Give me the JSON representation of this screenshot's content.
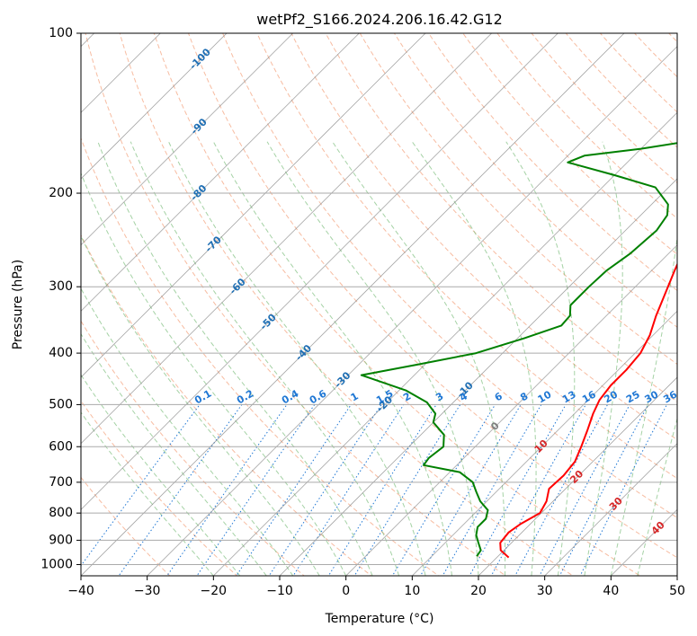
{
  "chart_data": {
    "type": "line",
    "title": "wetPf2_S166.2024.206.16.42.G12",
    "xlabel": "Temperature (°C)",
    "ylabel": "Pressure (hPa)",
    "xlim": [
      -40,
      50
    ],
    "ylim": [
      1050,
      100
    ],
    "y_scale": "log",
    "grid": true,
    "x_ticks": [
      "-40",
      "-30",
      "-20",
      "-10",
      "0",
      "10",
      "20",
      "30",
      "40",
      "50"
    ],
    "y_ticks": [
      "100",
      "200",
      "300",
      "400",
      "500",
      "600",
      "700",
      "800",
      "900",
      "1000"
    ],
    "series": [
      {
        "color": "#ff0000",
        "points": [
          [
            21.8,
            970
          ],
          [
            19.5,
            940
          ],
          [
            18.3,
            910
          ],
          [
            18.0,
            870
          ],
          [
            18.5,
            840
          ],
          [
            19.8,
            800
          ],
          [
            19.0,
            760
          ],
          [
            17.5,
            720
          ],
          [
            17.7,
            680
          ],
          [
            17.3,
            640
          ],
          [
            16.0,
            600
          ],
          [
            14.5,
            560
          ],
          [
            12.8,
            520
          ],
          [
            11.7,
            490
          ],
          [
            11.2,
            460
          ],
          [
            11.2,
            430
          ],
          [
            10.8,
            400
          ],
          [
            9.5,
            370
          ],
          [
            7.5,
            340
          ],
          [
            5.6,
            310
          ],
          [
            3.5,
            280
          ],
          [
            1.3,
            250
          ],
          [
            0.5,
            230
          ],
          [
            1.0,
            215
          ],
          [
            3.5,
            205
          ],
          [
            8.0,
            195
          ],
          [
            10.8,
            185
          ],
          [
            12.8,
            175
          ],
          [
            13.8,
            160
          ],
          [
            15.0,
            145
          ],
          [
            17.0,
            130
          ],
          [
            19.5,
            118
          ],
          [
            21.0,
            110
          ],
          [
            23.0,
            104
          ],
          [
            25.0,
            100
          ]
        ]
      },
      {
        "color": "#008000",
        "points": [
          [
            16.8,
            965
          ],
          [
            16.5,
            940
          ],
          [
            15.0,
            910
          ],
          [
            13.5,
            880
          ],
          [
            12.5,
            850
          ],
          [
            12.5,
            820
          ],
          [
            11.5,
            790
          ],
          [
            9.0,
            760
          ],
          [
            7.0,
            730
          ],
          [
            5.0,
            700
          ],
          [
            1.5,
            670
          ],
          [
            -5.0,
            650
          ],
          [
            -5.3,
            630
          ],
          [
            -4.8,
            600
          ],
          [
            -6.5,
            570
          ],
          [
            -10.0,
            540
          ],
          [
            -11.0,
            520
          ],
          [
            -14.0,
            495
          ],
          [
            -19.0,
            470
          ],
          [
            -28.0,
            440
          ],
          [
            -21.0,
            420
          ],
          [
            -14.0,
            400
          ],
          [
            -9.0,
            375
          ],
          [
            -5.3,
            355
          ],
          [
            -5.5,
            340
          ],
          [
            -7.0,
            325
          ],
          [
            -7.0,
            300
          ],
          [
            -6.8,
            280
          ],
          [
            -5.8,
            260
          ],
          [
            -5.3,
            235
          ],
          [
            -6.0,
            220
          ],
          [
            -7.5,
            210
          ],
          [
            -12.0,
            195
          ],
          [
            -20.0,
            185
          ],
          [
            -29.0,
            175
          ],
          [
            -27.5,
            170
          ],
          [
            -20.0,
            165
          ],
          [
            -12.0,
            158
          ],
          [
            -9.5,
            150
          ],
          [
            -8.5,
            140
          ],
          [
            -10.0,
            133
          ],
          [
            -9.5,
            128
          ],
          [
            -5.0,
            122
          ],
          [
            -1.0,
            118
          ],
          [
            0.5,
            112
          ],
          [
            0.5,
            106
          ],
          [
            -2.0,
            100
          ]
        ]
      }
    ],
    "isotherm_labels": [
      "-100",
      "-90",
      "-80",
      "-70",
      "-60",
      "-50",
      "-40",
      "-30",
      "-20",
      "-10",
      "0",
      "10",
      "20",
      "30",
      "40"
    ],
    "mixing_ratio_labels": [
      "0.1",
      "0.2",
      "0.4",
      "0.6",
      "1",
      "1.5",
      "2",
      "3",
      "4",
      "6",
      "8",
      "10",
      "13",
      "16",
      "20",
      "25",
      "30",
      "36"
    ],
    "colors": {
      "temperature": "#ff0000",
      "dewpoint": "#008000",
      "dry_adiabat": "#f4a582",
      "moist_adiabat": "#7fbf7f",
      "mixing_ratio": "#1f77d4",
      "isotherm": "#808080",
      "iso_label_cold": "#1f6fb4",
      "iso_label_warm": "#d62728",
      "iso_label_zero": "#7f7f7f"
    }
  }
}
